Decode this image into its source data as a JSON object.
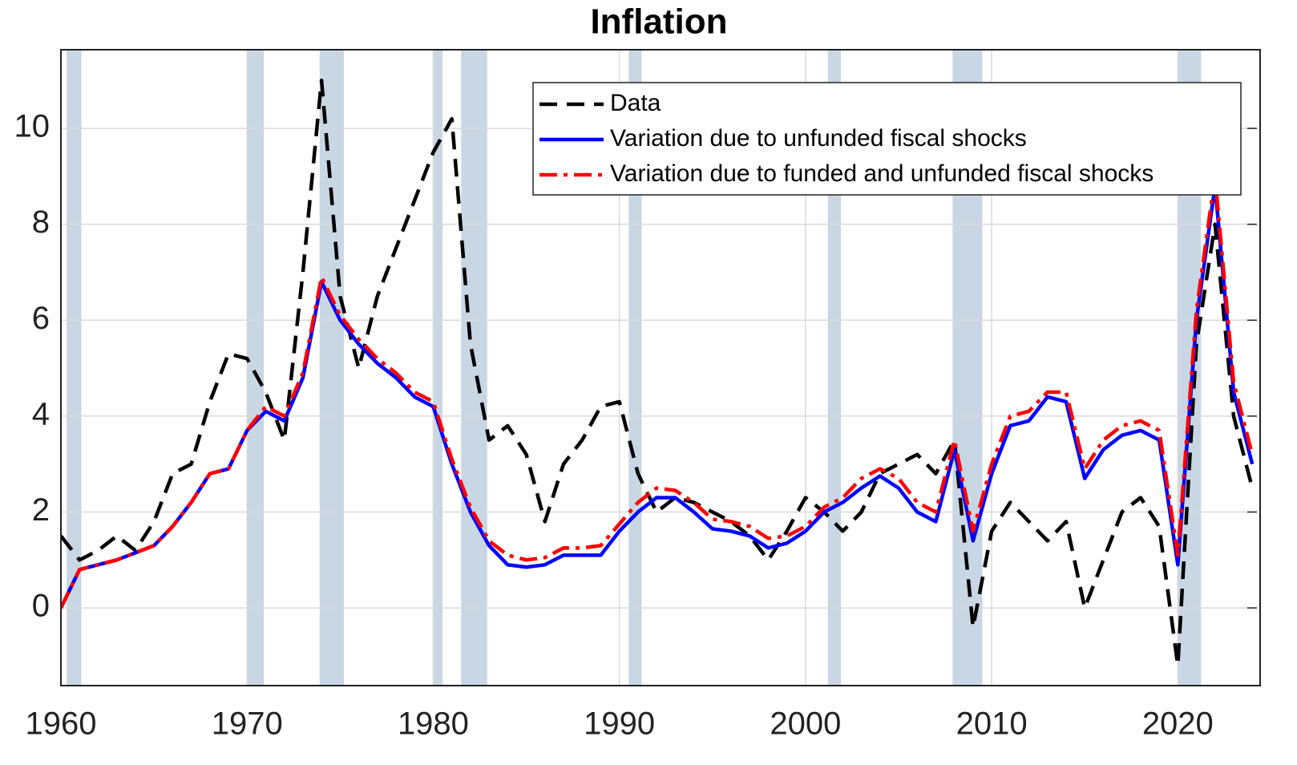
{
  "chart_data": {
    "type": "line",
    "title": "Inflation",
    "x": [
      1960,
      1961,
      1962,
      1963,
      1964,
      1965,
      1966,
      1967,
      1968,
      1969,
      1970,
      1971,
      1972,
      1973,
      1974,
      1975,
      1976,
      1977,
      1978,
      1979,
      1980,
      1981,
      1982,
      1983,
      1984,
      1985,
      1986,
      1987,
      1988,
      1989,
      1990,
      1991,
      1992,
      1993,
      1994,
      1995,
      1996,
      1997,
      1998,
      1999,
      2000,
      2001,
      2002,
      2003,
      2004,
      2005,
      2006,
      2007,
      2008,
      2009,
      2010,
      2011,
      2012,
      2013,
      2014,
      2015,
      2016,
      2017,
      2018,
      2019,
      2020,
      2021,
      2022,
      2023,
      2024
    ],
    "series": [
      {
        "name": "Data",
        "color": "#000000",
        "linestyle": "dashed",
        "values": [
          1.5,
          1.0,
          1.2,
          1.5,
          1.2,
          1.8,
          2.8,
          3.0,
          4.3,
          5.3,
          5.2,
          4.5,
          3.5,
          7.0,
          11.0,
          6.5,
          5.0,
          6.5,
          7.5,
          8.5,
          9.5,
          10.2,
          5.5,
          3.5,
          3.8,
          3.2,
          1.8,
          3.0,
          3.5,
          4.2,
          4.3,
          2.8,
          2.0,
          2.3,
          2.2,
          2.0,
          1.8,
          1.5,
          1.0,
          1.6,
          2.3,
          2.0,
          1.6,
          2.0,
          2.8,
          3.0,
          3.2,
          2.8,
          3.5,
          -0.4,
          1.6,
          2.2,
          1.8,
          1.4,
          1.8,
          0.0,
          1.0,
          2.0,
          2.3,
          1.7,
          -1.2,
          5.5,
          8.0,
          4.0,
          2.5
        ]
      },
      {
        "name": "Variation due to unfunded fiscal shocks",
        "color": "#0000ff",
        "linestyle": "solid",
        "values": [
          0,
          0.8,
          0.9,
          1.0,
          1.15,
          1.3,
          1.7,
          2.2,
          2.8,
          2.9,
          3.7,
          4.1,
          3.9,
          4.8,
          6.8,
          6.0,
          5.5,
          5.1,
          4.8,
          4.4,
          4.2,
          3.0,
          2.0,
          1.3,
          0.9,
          0.85,
          0.9,
          1.1,
          1.1,
          1.1,
          1.6,
          2.0,
          2.3,
          2.3,
          2.0,
          1.65,
          1.6,
          1.5,
          1.25,
          1.35,
          1.6,
          2.0,
          2.2,
          2.5,
          2.75,
          2.5,
          2.0,
          1.8,
          3.3,
          1.4,
          2.8,
          3.8,
          3.9,
          4.4,
          4.3,
          2.7,
          3.3,
          3.6,
          3.7,
          3.5,
          0.9,
          6.0,
          8.8,
          4.5,
          3.0
        ]
      },
      {
        "name": "Variation due to funded and unfunded fiscal shocks",
        "color": "#ff0000",
        "linestyle": "dashdot",
        "values": [
          0,
          0.8,
          0.9,
          1.0,
          1.15,
          1.3,
          1.7,
          2.2,
          2.8,
          2.9,
          3.7,
          4.2,
          4.0,
          4.9,
          6.9,
          6.1,
          5.6,
          5.2,
          4.9,
          4.5,
          4.3,
          3.1,
          2.1,
          1.4,
          1.1,
          1.0,
          1.05,
          1.25,
          1.25,
          1.3,
          1.75,
          2.2,
          2.5,
          2.45,
          2.2,
          1.85,
          1.8,
          1.7,
          1.45,
          1.5,
          1.7,
          2.1,
          2.3,
          2.7,
          2.9,
          2.7,
          2.2,
          2.0,
          3.5,
          1.6,
          3.0,
          4.0,
          4.1,
          4.5,
          4.5,
          2.9,
          3.5,
          3.8,
          3.9,
          3.7,
          1.1,
          6.2,
          9.0,
          4.7,
          3.2
        ]
      }
    ],
    "shaded_periods": [
      [
        1960.3,
        1961.1
      ],
      [
        1970.0,
        1970.9
      ],
      [
        1973.9,
        1975.2
      ],
      [
        1980.0,
        1980.5
      ],
      [
        1981.5,
        1982.9
      ],
      [
        1990.5,
        1991.2
      ],
      [
        2001.2,
        2001.9
      ],
      [
        2007.9,
        2009.5
      ],
      [
        2020.0,
        2021.25
      ]
    ],
    "shade_color": "#c9d7e5",
    "xlim": [
      1960,
      2024.25
    ],
    "xticks": [
      1960,
      1970,
      1980,
      1990,
      2000,
      2010,
      2020
    ],
    "ylim": [
      -1.62,
      11.64
    ],
    "yticks": [
      0,
      2,
      4,
      6,
      8,
      10
    ],
    "grid": true,
    "legend": "upper right"
  }
}
